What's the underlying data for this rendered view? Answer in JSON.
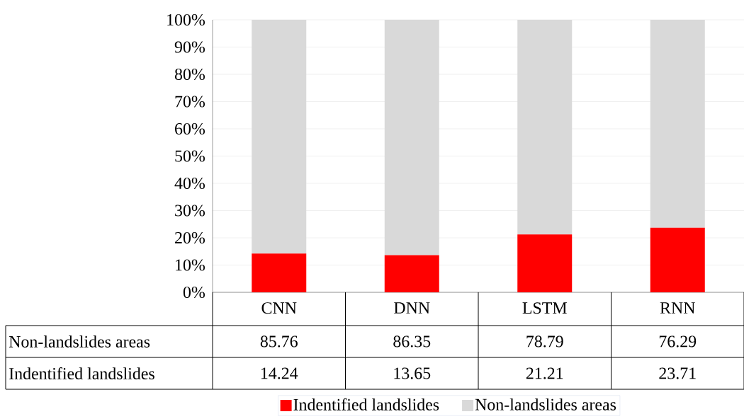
{
  "chart_data": {
    "type": "bar",
    "stacked": true,
    "categories": [
      "CNN",
      "DNN",
      "LSTM",
      "RNN"
    ],
    "series": [
      {
        "name": "Indentified landslides",
        "color": "#ff0000",
        "values": [
          14.24,
          13.65,
          21.21,
          23.71
        ]
      },
      {
        "name": "Non-landslides areas",
        "color": "#d9d9d9",
        "values": [
          85.76,
          86.35,
          78.79,
          76.29
        ]
      }
    ],
    "ylim": [
      0,
      100
    ],
    "yticks": [
      {
        "value": 0,
        "label": "0%"
      },
      {
        "value": 10,
        "label": "10%"
      },
      {
        "value": 20,
        "label": "20%"
      },
      {
        "value": 30,
        "label": "30%"
      },
      {
        "value": 40,
        "label": "40%"
      },
      {
        "value": 50,
        "label": "50%"
      },
      {
        "value": 60,
        "label": "60%"
      },
      {
        "value": 70,
        "label": "70%"
      },
      {
        "value": 80,
        "label": "80%"
      },
      {
        "value": 90,
        "label": "90%"
      },
      {
        "value": 100,
        "label": "100%"
      }
    ],
    "grid": "y",
    "legend": "bottom",
    "data_labels": true
  }
}
